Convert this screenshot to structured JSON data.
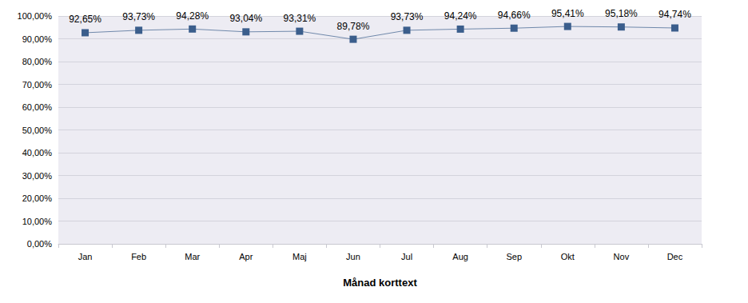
{
  "chart_data": {
    "type": "line",
    "x_label": "Månad korttext",
    "categories": [
      "Jan",
      "Feb",
      "Mar",
      "Apr",
      "Maj",
      "Jun",
      "Jul",
      "Aug",
      "Sep",
      "Okt",
      "Nov",
      "Dec"
    ],
    "values": [
      92.65,
      93.73,
      94.28,
      93.04,
      93.31,
      89.78,
      93.73,
      94.24,
      94.66,
      95.41,
      95.18,
      94.74
    ],
    "value_labels": [
      "92,65%",
      "93,73%",
      "94,28%",
      "93,04%",
      "93,31%",
      "89,78%",
      "93,73%",
      "94,24%",
      "94,66%",
      "95,41%",
      "95,18%",
      "94,74%"
    ],
    "color": "#3b5e8c",
    "marker": "square",
    "data_labels": true,
    "grid": true,
    "ylim": [
      0,
      100
    ],
    "yticks": [
      {
        "value": 0,
        "label": "0,00%"
      },
      {
        "value": 10,
        "label": "10,00%"
      },
      {
        "value": 20,
        "label": "20,00%"
      },
      {
        "value": 30,
        "label": "30,00%"
      },
      {
        "value": 40,
        "label": "40,00%"
      },
      {
        "value": 50,
        "label": "50,00%"
      },
      {
        "value": 60,
        "label": "60,00%"
      },
      {
        "value": 70,
        "label": "70,00%"
      },
      {
        "value": 80,
        "label": "80,00%"
      },
      {
        "value": 90,
        "label": "90,00%"
      },
      {
        "value": 100,
        "label": "100,00%"
      }
    ]
  }
}
